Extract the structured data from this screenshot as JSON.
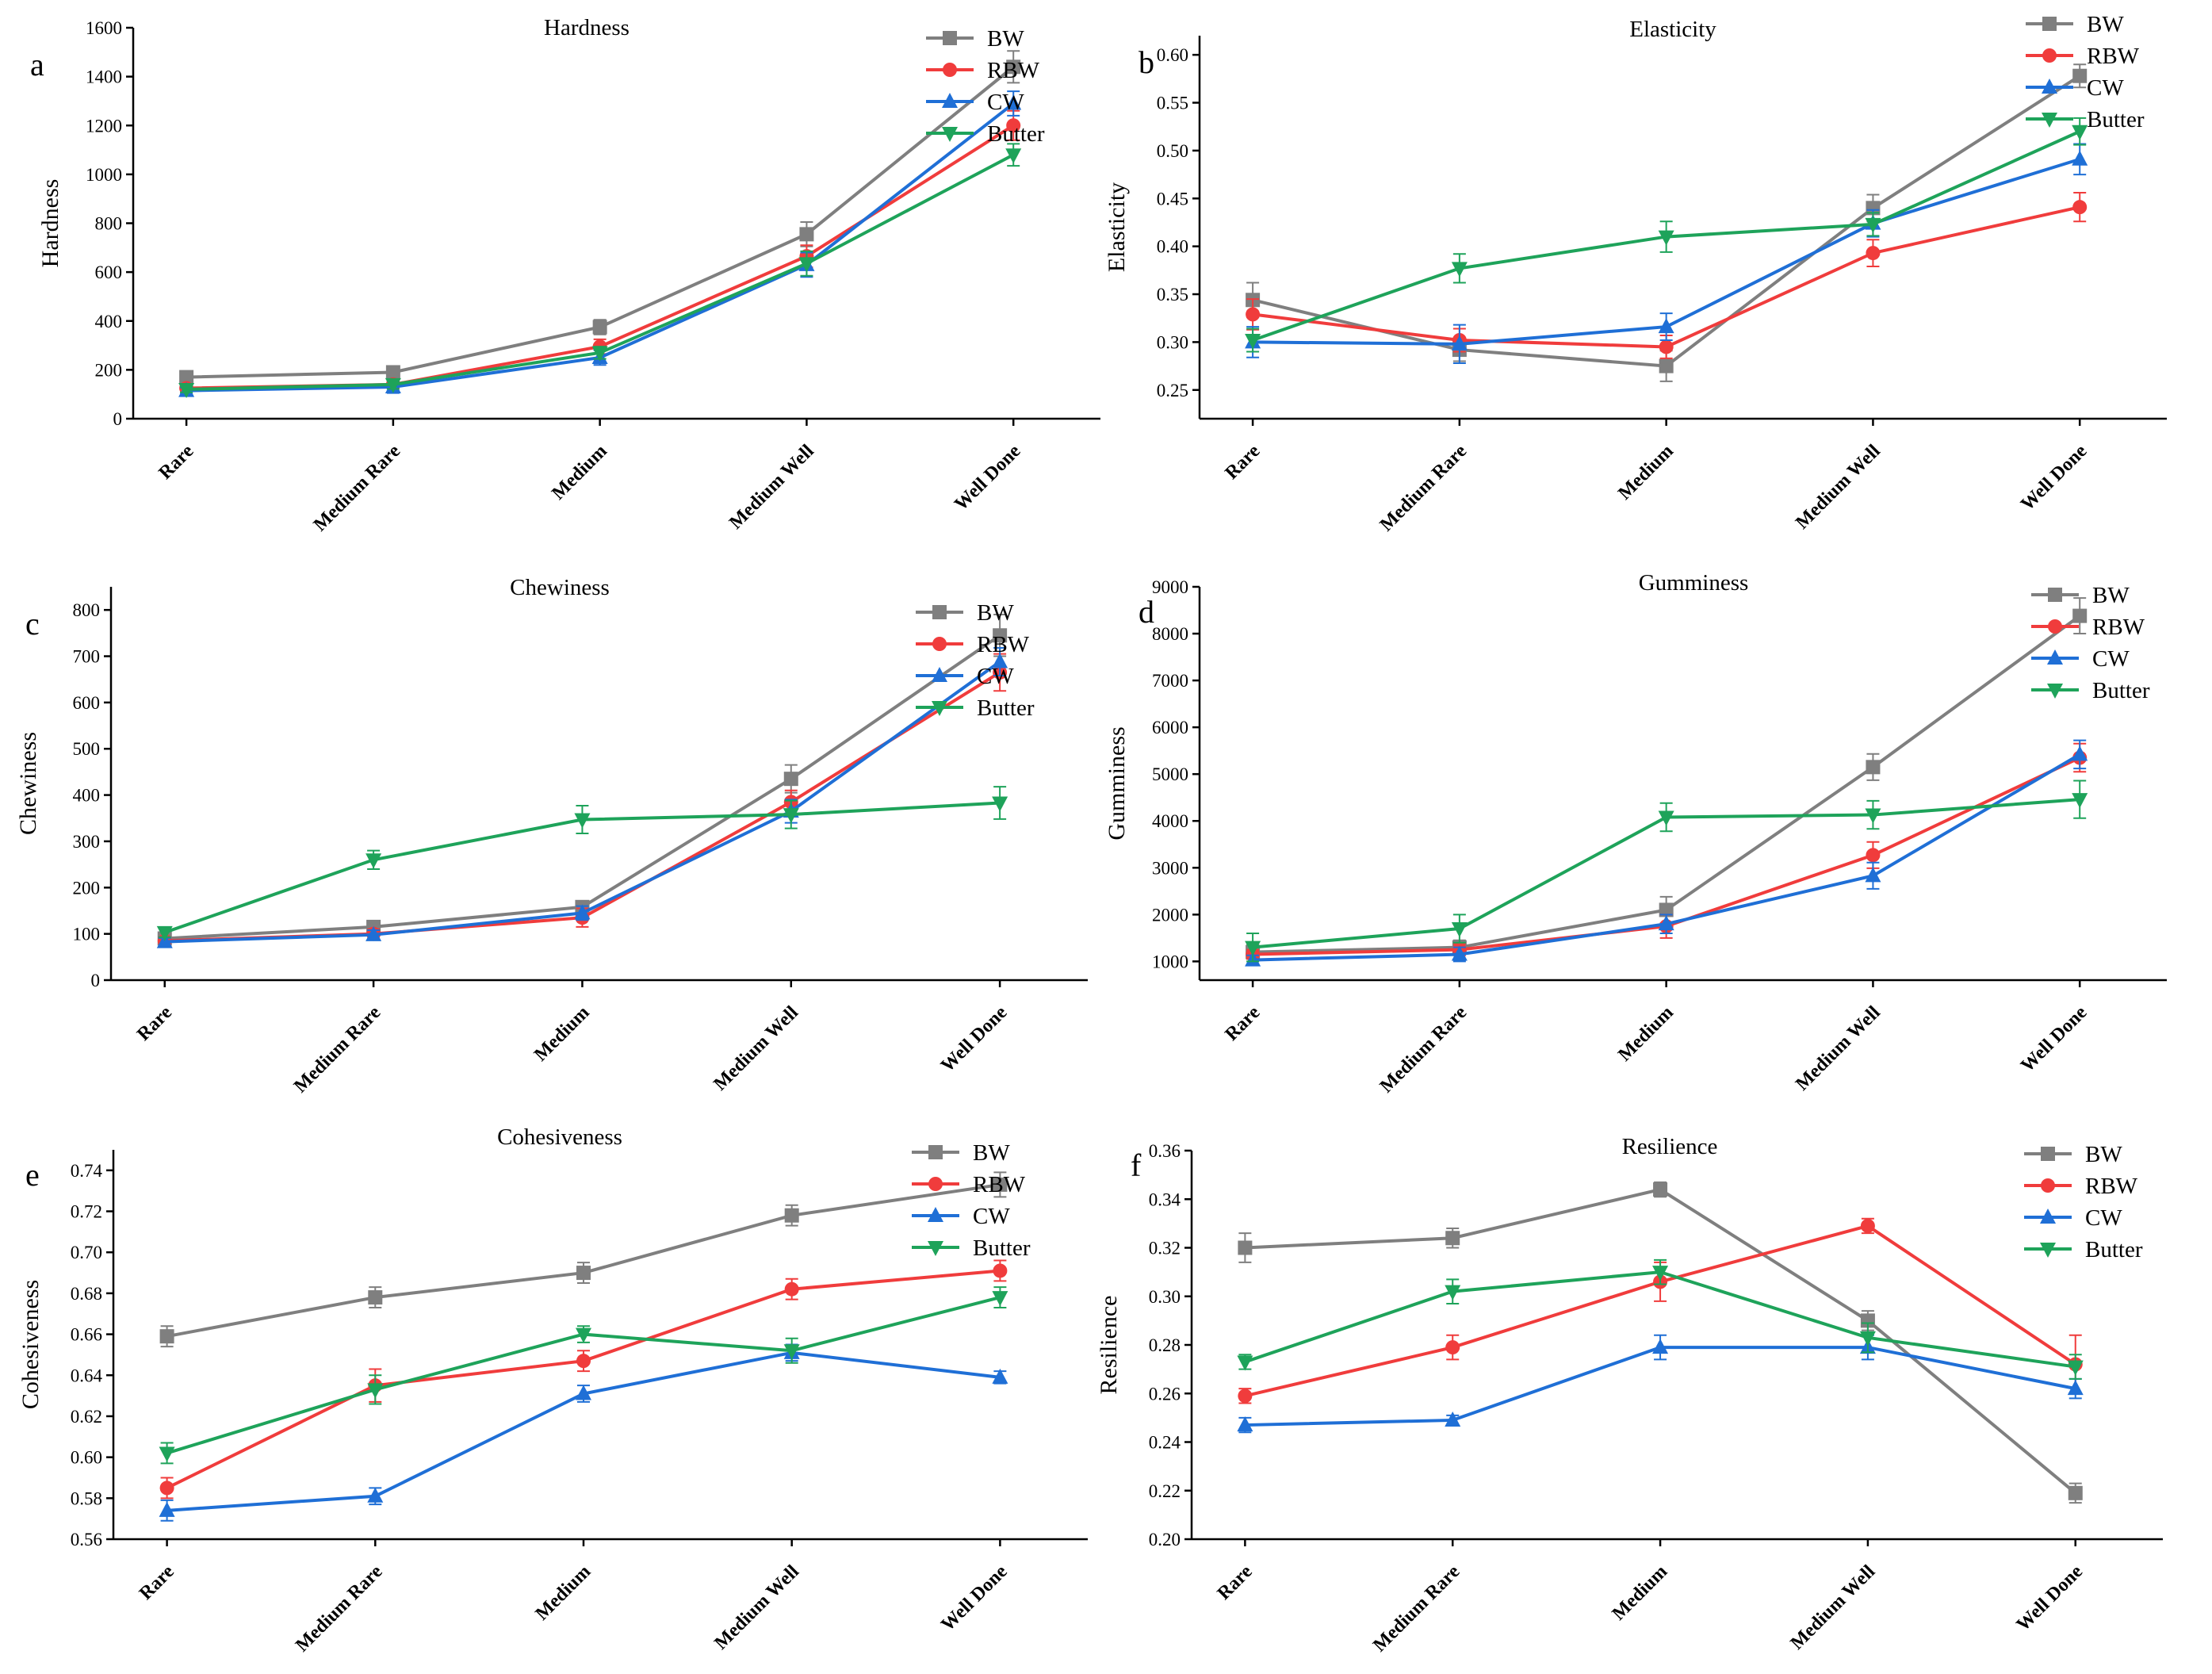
{
  "figure": {
    "series_colors": {
      "BW": "#7f7f7f",
      "RBW": "#f03c3c",
      "CW": "#1f6fd6",
      "Butter": "#1ea35a"
    },
    "series_markers": {
      "BW": "square",
      "RBW": "circle",
      "CW": "triangle-up",
      "Butter": "triangle-down"
    }
  },
  "chart_data": [
    {
      "panel": "a",
      "type": "line",
      "title": "Hardness",
      "xlabel": "",
      "ylabel": "Hardness",
      "categories": [
        "Rare",
        "Medium Rare",
        "Medium",
        "Medium Well",
        "Well Done"
      ],
      "ylim": [
        0,
        1600
      ],
      "yticks": [
        0,
        200,
        400,
        600,
        800,
        1000,
        1200,
        1400,
        1600
      ],
      "legend": [
        "BW",
        "RBW",
        "CW",
        "Butter"
      ],
      "series": [
        {
          "name": "BW",
          "values": [
            170,
            190,
            375,
            755,
            1440
          ],
          "errors": [
            15,
            25,
            30,
            50,
            65
          ]
        },
        {
          "name": "RBW",
          "values": [
            125,
            140,
            295,
            665,
            1200
          ],
          "errors": [
            12,
            15,
            30,
            45,
            60
          ]
        },
        {
          "name": "CW",
          "values": [
            115,
            130,
            250,
            630,
            1290
          ],
          "errors": [
            12,
            25,
            30,
            50,
            50
          ]
        },
        {
          "name": "Butter",
          "values": [
            120,
            140,
            270,
            635,
            1080
          ],
          "errors": [
            12,
            18,
            25,
            50,
            45
          ]
        }
      ]
    },
    {
      "panel": "b",
      "type": "line",
      "title": "Elasticity",
      "xlabel": "",
      "ylabel": "Elasticity",
      "categories": [
        "Rare",
        "Medium Rare",
        "Medium",
        "Medium Well",
        "Well Done"
      ],
      "ylim": [
        0.22,
        0.62
      ],
      "yticks": [
        0.25,
        0.3,
        0.35,
        0.4,
        0.45,
        0.5,
        0.55,
        0.6
      ],
      "tick_labels": [
        "0.25",
        "0.30",
        "0.35",
        "0.40",
        "0.45",
        "0.50",
        "0.55",
        "0.60"
      ],
      "legend": [
        "BW",
        "RBW",
        "CW",
        "Butter"
      ],
      "series": [
        {
          "name": "BW",
          "values": [
            0.344,
            0.292,
            0.275,
            0.44,
            0.578
          ],
          "errors": [
            0.018,
            0.012,
            0.016,
            0.014,
            0.012
          ]
        },
        {
          "name": "RBW",
          "values": [
            0.329,
            0.302,
            0.295,
            0.393,
            0.441
          ],
          "errors": [
            0.016,
            0.012,
            0.012,
            0.014,
            0.015
          ]
        },
        {
          "name": "CW",
          "values": [
            0.3,
            0.298,
            0.316,
            0.424,
            0.491
          ],
          "errors": [
            0.016,
            0.02,
            0.014,
            0.014,
            0.016
          ]
        },
        {
          "name": "Butter",
          "values": [
            0.302,
            0.377,
            0.41,
            0.423,
            0.52
          ],
          "errors": [
            0.012,
            0.015,
            0.016,
            0.012,
            0.014
          ]
        }
      ]
    },
    {
      "panel": "c",
      "type": "line",
      "title": "Chewiness",
      "xlabel": "",
      "ylabel": "Chewiness",
      "categories": [
        "Rare",
        "Medium Rare",
        "Medium",
        "Medium Well",
        "Well Done"
      ],
      "ylim": [
        0,
        850
      ],
      "yticks": [
        0,
        100,
        200,
        300,
        400,
        500,
        600,
        700,
        800
      ],
      "legend": [
        "BW",
        "RBW",
        "CW",
        "Butter"
      ],
      "series": [
        {
          "name": "BW",
          "values": [
            90,
            115,
            158,
            435,
            745
          ],
          "errors": [
            10,
            10,
            12,
            30,
            45
          ]
        },
        {
          "name": "RBW",
          "values": [
            85,
            100,
            135,
            385,
            665
          ],
          "errors": [
            8,
            10,
            20,
            25,
            40
          ]
        },
        {
          "name": "CW",
          "values": [
            83,
            98,
            145,
            365,
            688
          ],
          "errors": [
            8,
            10,
            15,
            25,
            30
          ]
        },
        {
          "name": "Butter",
          "values": [
            103,
            260,
            347,
            358,
            383
          ],
          "errors": [
            10,
            20,
            30,
            30,
            35
          ]
        }
      ]
    },
    {
      "panel": "d",
      "type": "line",
      "title": "Gumminess",
      "xlabel": "",
      "ylabel": "Gumminess",
      "categories": [
        "Rare",
        "Medium Rare",
        "Medium",
        "Medium Well",
        "Well Done"
      ],
      "ylim": [
        600,
        9000
      ],
      "yticks": [
        1000,
        2000,
        3000,
        4000,
        5000,
        6000,
        7000,
        8000,
        9000
      ],
      "legend": [
        "BW",
        "RBW",
        "CW",
        "Butter"
      ],
      "series": [
        {
          "name": "BW",
          "values": [
            1200,
            1300,
            2100,
            5150,
            8380
          ],
          "errors": [
            150,
            150,
            280,
            280,
            380
          ]
        },
        {
          "name": "RBW",
          "values": [
            1150,
            1250,
            1750,
            3270,
            5350
          ],
          "errors": [
            100,
            120,
            250,
            280,
            300
          ]
        },
        {
          "name": "CW",
          "values": [
            1030,
            1150,
            1800,
            2830,
            5420
          ],
          "errors": [
            100,
            150,
            200,
            280,
            300
          ]
        },
        {
          "name": "Butter",
          "values": [
            1300,
            1700,
            4080,
            4130,
            4460
          ],
          "errors": [
            300,
            300,
            300,
            300,
            400
          ]
        }
      ]
    },
    {
      "panel": "e",
      "type": "line",
      "title": "Cohesiveness",
      "xlabel": "",
      "ylabel": "Cohesiveness",
      "categories": [
        "Rare",
        "Medium Rare",
        "Medium",
        "Medium Well",
        "Well Done"
      ],
      "ylim": [
        0.56,
        0.75
      ],
      "yticks": [
        0.56,
        0.58,
        0.6,
        0.62,
        0.64,
        0.66,
        0.68,
        0.7,
        0.72,
        0.74
      ],
      "tick_labels": [
        "0.56",
        "0.58",
        "0.60",
        "0.62",
        "0.64",
        "0.66",
        "0.68",
        "0.70",
        "0.72",
        "0.74"
      ],
      "legend": [
        "BW",
        "RBW",
        "CW",
        "Butter"
      ],
      "series": [
        {
          "name": "BW",
          "values": [
            0.659,
            0.678,
            0.69,
            0.718,
            0.733
          ],
          "errors": [
            0.005,
            0.005,
            0.005,
            0.005,
            0.006
          ]
        },
        {
          "name": "RBW",
          "values": [
            0.585,
            0.635,
            0.647,
            0.682,
            0.691
          ],
          "errors": [
            0.005,
            0.008,
            0.005,
            0.005,
            0.005
          ]
        },
        {
          "name": "CW",
          "values": [
            0.574,
            0.581,
            0.631,
            0.651,
            0.639
          ],
          "errors": [
            0.005,
            0.004,
            0.004,
            0.004,
            0.003
          ]
        },
        {
          "name": "Butter",
          "values": [
            0.602,
            0.633,
            0.66,
            0.652,
            0.678
          ],
          "errors": [
            0.005,
            0.007,
            0.004,
            0.006,
            0.005
          ]
        }
      ]
    },
    {
      "panel": "f",
      "type": "line",
      "title": "Resilience",
      "xlabel": "",
      "ylabel": "Resilience",
      "categories": [
        "Rare",
        "Medium Rare",
        "Medium",
        "Medium Well",
        "Well Done"
      ],
      "ylim": [
        0.2,
        0.36
      ],
      "yticks": [
        0.2,
        0.22,
        0.24,
        0.26,
        0.28,
        0.3,
        0.32,
        0.34,
        0.36
      ],
      "tick_labels": [
        "0.20",
        "0.22",
        "0.24",
        "0.26",
        "0.28",
        "0.30",
        "0.32",
        "0.34",
        "0.36"
      ],
      "legend": [
        "BW",
        "RBW",
        "CW",
        "Butter"
      ],
      "series": [
        {
          "name": "BW",
          "values": [
            0.32,
            0.324,
            0.344,
            0.29,
            0.219
          ],
          "errors": [
            0.006,
            0.004,
            0.003,
            0.004,
            0.004
          ]
        },
        {
          "name": "RBW",
          "values": [
            0.259,
            0.279,
            0.306,
            0.329,
            0.272
          ],
          "errors": [
            0.003,
            0.005,
            0.008,
            0.003,
            0.012
          ]
        },
        {
          "name": "CW",
          "values": [
            0.247,
            0.249,
            0.279,
            0.279,
            0.262
          ],
          "errors": [
            0.003,
            0.002,
            0.005,
            0.005,
            0.004
          ]
        },
        {
          "name": "Butter",
          "values": [
            0.273,
            0.302,
            0.31,
            0.283,
            0.271
          ],
          "errors": [
            0.003,
            0.005,
            0.005,
            0.006,
            0.005
          ]
        }
      ]
    }
  ]
}
